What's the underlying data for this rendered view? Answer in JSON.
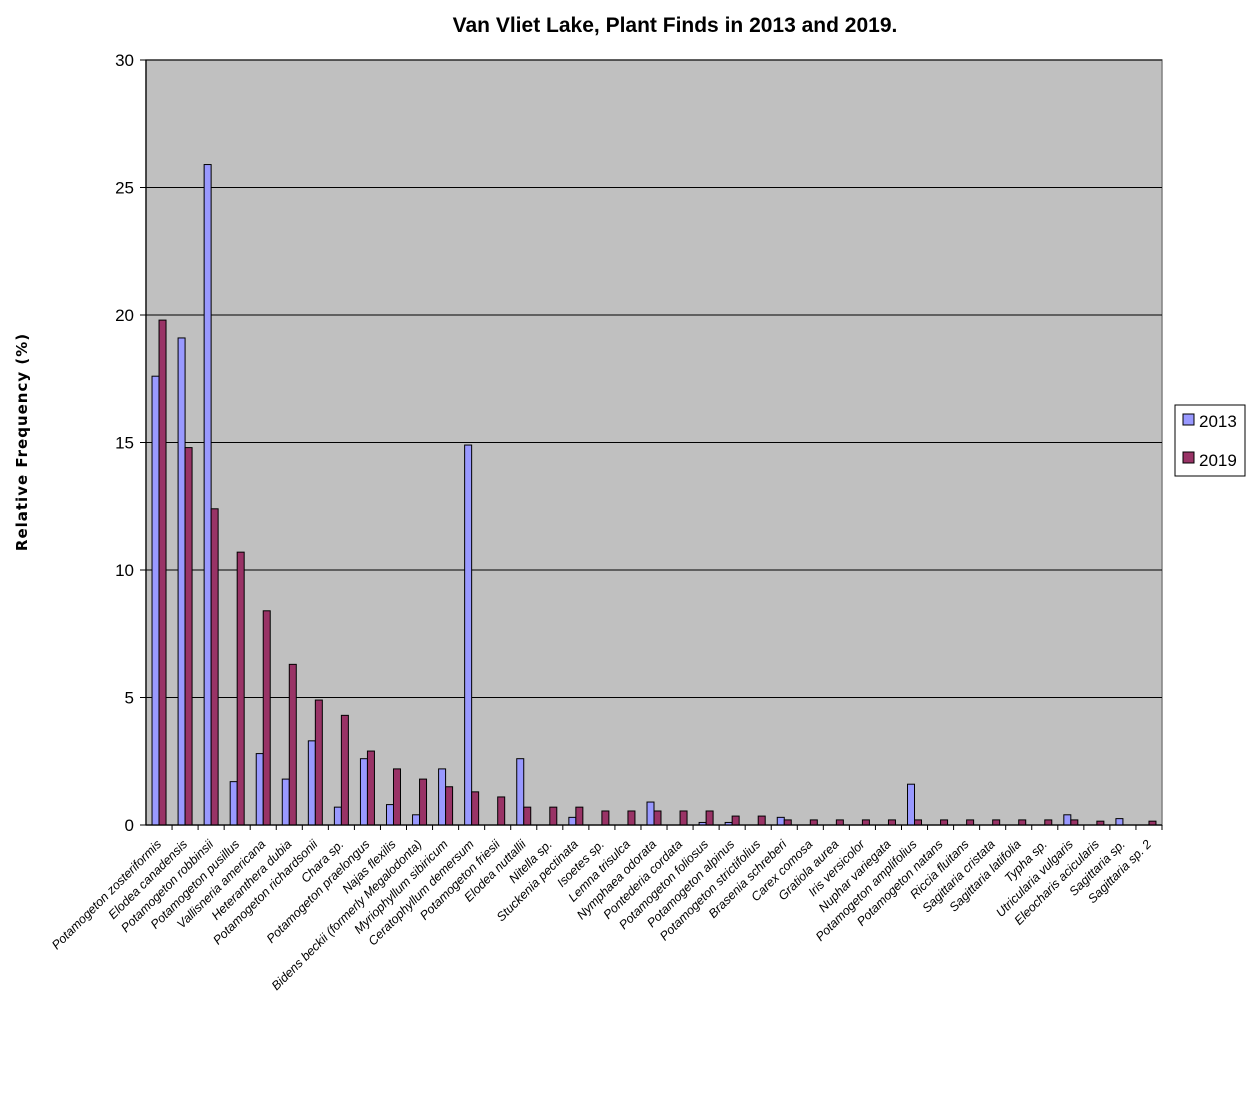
{
  "chart_data": {
    "type": "bar",
    "title": "Van Vliet Lake, Plant Finds in 2013 and 2019.",
    "xlabel": "",
    "ylabel": "Relative Frequency (%)",
    "ylim": [
      0,
      30
    ],
    "yticks": [
      0,
      5,
      10,
      15,
      20,
      25,
      30
    ],
    "grid": true,
    "legend_position": "right",
    "categories": [
      "Potamogeton zosteriformis",
      "Elodea canadensis",
      "Potamogeton robbinsii",
      "Potamogeton pusillus",
      "Vallisneria americana",
      "Heteranthera dubia",
      "Potamogeton richardsonii",
      "Chara sp.",
      "Potamogeton praelongus",
      "Najas flexilis",
      "Bidens beckii (formerly Megalodonta)",
      "Myriophyllum sibiricum",
      "Ceratophyllum demersum",
      "Potamogeton friesii",
      "Elodea nuttallii",
      "Nitella sp.",
      "Stuckenia pectinata",
      "Isoetes sp.",
      "Lemna trisulca",
      "Nymphaea odorata",
      "Pontederia cordata",
      "Potamogeton foliosus",
      "Potamogeton alpinus",
      "Potamogeton strictifolius",
      "Brasenia schreberi",
      "Carex comosa",
      "Gratiola aurea",
      "Iris versicolor",
      "Nuphar variegata",
      "Potamogeton amplifolius",
      "Potamogeton natans",
      "Riccia fluitans",
      "Sagittaria cristata",
      "Sagittaria latifolia",
      "Typha sp.",
      "Utricularia vulgaris",
      "Eleocharis acicularis",
      "Sagittaria sp.",
      "Sagittaria sp. 2"
    ],
    "series": [
      {
        "name": "2013",
        "color": "#9999ff",
        "values": [
          17.6,
          19.1,
          25.9,
          1.7,
          2.8,
          1.8,
          3.3,
          0.7,
          2.6,
          0.8,
          0.4,
          2.2,
          14.9,
          0,
          2.6,
          0,
          0.3,
          0,
          0,
          0.9,
          0,
          0.1,
          0.1,
          0,
          0.3,
          0,
          0,
          0,
          0,
          1.6,
          0,
          0,
          0,
          0,
          0,
          0.4,
          0,
          0.25,
          0
        ]
      },
      {
        "name": "2019",
        "color": "#993366",
        "values": [
          19.8,
          14.8,
          12.4,
          10.7,
          8.4,
          6.3,
          4.9,
          4.3,
          2.9,
          2.2,
          1.8,
          1.5,
          1.3,
          1.1,
          0.7,
          0.7,
          0.7,
          0.55,
          0.55,
          0.55,
          0.55,
          0.55,
          0.35,
          0.35,
          0.2,
          0.2,
          0.2,
          0.2,
          0.2,
          0.2,
          0.2,
          0.2,
          0.2,
          0.2,
          0.2,
          0.2,
          0.15,
          0,
          0.15
        ]
      }
    ]
  }
}
